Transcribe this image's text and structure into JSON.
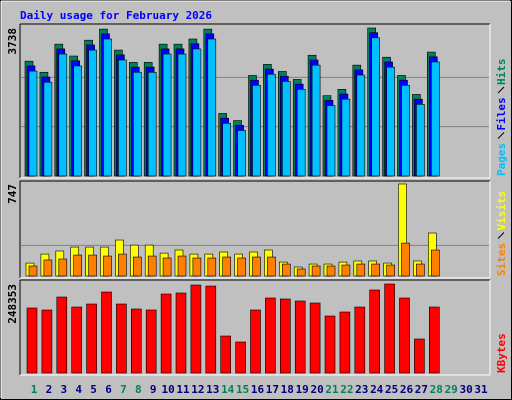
{
  "chart_data": {
    "type": "bar",
    "title": "Daily usage for February 2026",
    "title_color": "#0000ff",
    "categories": [
      1,
      2,
      3,
      4,
      5,
      6,
      7,
      8,
      9,
      10,
      11,
      12,
      13,
      14,
      15,
      16,
      17,
      18,
      19,
      20,
      21,
      22,
      23,
      24,
      25,
      26,
      27,
      28,
      29,
      30,
      31
    ],
    "category_colors": [
      "#00805c",
      "#000080",
      "#000080",
      "#000080",
      "#000080",
      "#000080",
      "#00805c",
      "#00805c",
      "#000080",
      "#000080",
      "#000080",
      "#000080",
      "#000080",
      "#00805c",
      "#00805c",
      "#000080",
      "#000080",
      "#000080",
      "#000080",
      "#000080",
      "#00805c",
      "#00805c",
      "#000080",
      "#000080",
      "#000080",
      "#000080",
      "#000080",
      "#00805c",
      "#00805c",
      "#000080",
      "#000080"
    ],
    "panels": [
      {
        "ylim": [
          0,
          3738
        ],
        "yticks": [
          3738
        ],
        "series": [
          {
            "name": "Hits",
            "color": "#00805c",
            "values": [
              2900,
              2620,
              3330,
              3030,
              3430,
              3710,
              3180,
              2870,
              2870,
              3330,
              3330,
              3460,
              3710,
              1580,
              1400,
              2540,
              2820,
              2640,
              2440,
              3050,
              2030,
              2190,
              2800,
              3738,
              3000,
              2540,
              2060,
              3130,
              null,
              null,
              null
            ]
          },
          {
            "name": "Files",
            "color": "#0000ff",
            "values": [
              2780,
              2500,
              3210,
              2910,
              3310,
              3590,
              3060,
              2750,
              2750,
              3210,
              3210,
              3340,
              3590,
              1460,
              1280,
              2420,
              2700,
              2520,
              2320,
              2930,
              1910,
              2070,
              2680,
              3620,
              2880,
              2420,
              1940,
              3010,
              null,
              null,
              null
            ]
          },
          {
            "name": "Pages",
            "color": "#00c0ff",
            "values": [
              2650,
              2370,
              3080,
              2780,
              3180,
              3460,
              2930,
              2620,
              2620,
              3080,
              3080,
              3210,
              3460,
              1330,
              1150,
              2290,
              2570,
              2390,
              2190,
              2800,
              1780,
              1940,
              2550,
              3490,
              2750,
              2290,
              1810,
              2880,
              null,
              null,
              null
            ]
          }
        ]
      },
      {
        "ylim": [
          0,
          747
        ],
        "yticks": [
          747
        ],
        "series": [
          {
            "name": "Visits",
            "color": "#ffff00",
            "values": [
              105,
              178,
              203,
              235,
              235,
              235,
              292,
              251,
              251,
              186,
              211,
              178,
              178,
              195,
              178,
              195,
              211,
              113,
              73,
              97,
              97,
              113,
              122,
              122,
              105,
              747,
              122,
              349,
              null,
              null,
              null
            ]
          },
          {
            "name": "Sites",
            "color": "#ff8000",
            "values": [
              81,
              130,
              138,
              170,
              170,
              162,
              178,
              154,
              162,
              146,
              162,
              146,
              146,
              154,
              146,
              154,
              154,
              97,
              57,
              81,
              81,
              89,
              97,
              97,
              89,
              267,
              97,
              211,
              null,
              null,
              null
            ]
          }
        ]
      },
      {
        "ylim": [
          0,
          248353
        ],
        "yticks": [
          248353
        ],
        "series": [
          {
            "name": "KBytes",
            "color": "#ff0000",
            "values": [
              181400,
              175800,
              212000,
              184100,
              192500,
              226000,
              192500,
              178600,
              175800,
              220400,
              223200,
              245500,
              242700,
              103200,
              86500,
              175800,
              209300,
              206500,
              200900,
              195300,
              159000,
              170200,
              184100,
              231600,
              248353,
              209300,
              94900,
              184100,
              null,
              null,
              null
            ]
          }
        ]
      }
    ]
  }
}
